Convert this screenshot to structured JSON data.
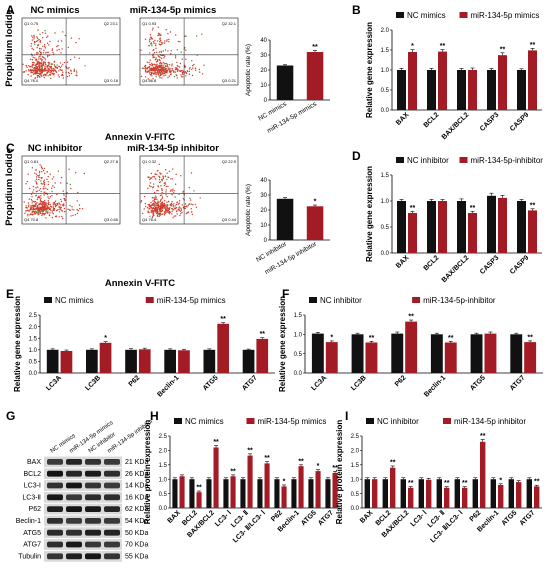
{
  "panel_letters": [
    "A",
    "B",
    "C",
    "D",
    "E",
    "F",
    "G",
    "H",
    "I"
  ],
  "colors": {
    "black": "#111111",
    "red": "#a31b24",
    "dots": "#d23a2a",
    "dots_green": "#3a9a3a"
  },
  "flow": [
    {
      "letter": "A",
      "plots": [
        {
          "label": "NC mimics",
          "q1": "Q1 0.75",
          "q2": "Q2 23.1",
          "q3": "Q3 0.18",
          "q4": "Q4 76.0"
        },
        {
          "label": "miR-134-5p mimics",
          "q1": "Q1 0.93",
          "q2": "Q2 32.1",
          "q3": "Q3 0.21",
          "q4": "Q4 66.8"
        }
      ],
      "ylabel": "Propidium Iodide",
      "xlabel": "Annexin V-FITC"
    },
    {
      "letter": "C",
      "plots": [
        {
          "label": "NC inhibitor",
          "q1": "Q1 0.81",
          "q2": "Q2 27.8",
          "q3": "Q3 0.65",
          "q4": "Q4 70.8"
        },
        {
          "label": "miR-134-5p inhibitor",
          "q1": "Q1 0.32",
          "q2": "Q2 22.9",
          "q3": "Q3 0.44",
          "q4": "Q4 76.4"
        }
      ],
      "ylabel": "Propidium Iodide",
      "xlabel": "Annexin V-FITC"
    }
  ],
  "western": {
    "letter": "G",
    "lanes": [
      "NC mimics",
      "miR-134-5p mimics",
      "NC inhibitor",
      "miR-134-5p inhibitor"
    ],
    "rows": [
      {
        "name": "BAX",
        "kda": "21 KDa"
      },
      {
        "name": "BCL2",
        "kda": "26 KDa"
      },
      {
        "name": "LC3-Ⅰ",
        "kda": "14 KDa"
      },
      {
        "name": "LC3-Ⅱ",
        "kda": "16 KDa"
      },
      {
        "name": "P62",
        "kda": "62 KDa"
      },
      {
        "name": "Beclin-1",
        "kda": "54 KDa"
      },
      {
        "name": "ATG5",
        "kda": "50 KDa"
      },
      {
        "name": "ATG7",
        "kda": "70 KDa"
      },
      {
        "name": "Tubulin",
        "kda": "55 KDa"
      }
    ]
  },
  "chart_data": [
    {
      "panel": "A-inset",
      "type": "bar",
      "ylabel": "Apoptotic rate (%)",
      "ylim": [
        0,
        40
      ],
      "yticks": [
        0,
        10,
        20,
        30,
        40
      ],
      "categories": [
        "NC mimics",
        "miR-134-5p mimics"
      ],
      "values": [
        23,
        32
      ],
      "errors": [
        0.5,
        1.0
      ],
      "colors": [
        "#111111",
        "#a31b24"
      ],
      "sig": [
        "",
        "**"
      ]
    },
    {
      "panel": "B",
      "type": "bar",
      "ylabel": "Relative gene expression",
      "ylim": [
        0,
        2.0
      ],
      "yticks": [
        0.0,
        0.5,
        1.0,
        1.5,
        2.0
      ],
      "legend": [
        "NC mimics",
        "miR-134-5p mimics"
      ],
      "categories": [
        "BAX",
        "BCL2",
        "BAX/BCL2",
        "CASP3",
        "CASP9"
      ],
      "series": [
        {
          "name": "NC mimics",
          "values": [
            1.0,
            1.0,
            1.0,
            1.0,
            1.0
          ],
          "errors": [
            0.04,
            0.04,
            0.04,
            0.04,
            0.03
          ]
        },
        {
          "name": "miR-134-5p mimics",
          "values": [
            1.45,
            1.46,
            1.0,
            1.37,
            1.49
          ],
          "errors": [
            0.06,
            0.05,
            0.05,
            0.06,
            0.05
          ]
        }
      ],
      "sig": [
        [
          "",
          "*"
        ],
        [
          "",
          "**"
        ],
        [
          "",
          ""
        ],
        [
          "",
          "**"
        ],
        [
          "",
          "**"
        ]
      ]
    },
    {
      "panel": "C-inset",
      "type": "bar",
      "ylabel": "Apoptotic rate (%)",
      "ylim": [
        0,
        40
      ],
      "yticks": [
        0,
        10,
        20,
        30,
        40
      ],
      "categories": [
        "NC inhibitor",
        "miR-134-5p inhibitor"
      ],
      "values": [
        27.5,
        22.5
      ],
      "errors": [
        0.8,
        0.8
      ],
      "colors": [
        "#111111",
        "#a31b24"
      ],
      "sig": [
        "",
        "*"
      ]
    },
    {
      "panel": "D",
      "type": "bar",
      "ylabel": "Relative gene expression",
      "ylim": [
        0,
        1.5
      ],
      "yticks": [
        0.0,
        0.5,
        1.0,
        1.5
      ],
      "legend": [
        "NC inhibitor",
        "miR-134-5p-inhibitor"
      ],
      "categories": [
        "BAX",
        "BCL2",
        "BAX/BCL2",
        "CASP3",
        "CASP9"
      ],
      "series": [
        {
          "name": "NC inhibitor",
          "values": [
            1.0,
            1.0,
            1.0,
            1.1,
            1.0
          ],
          "errors": [
            0.03,
            0.03,
            0.04,
            0.05,
            0.03
          ]
        },
        {
          "name": "miR-134-5p-inhibitor",
          "values": [
            0.77,
            1.0,
            0.77,
            1.06,
            0.82
          ],
          "errors": [
            0.03,
            0.03,
            0.03,
            0.05,
            0.03
          ]
        }
      ],
      "sig": [
        [
          "",
          "**"
        ],
        [
          "",
          ""
        ],
        [
          "",
          "**"
        ],
        [
          "",
          ""
        ],
        [
          "",
          "**"
        ]
      ]
    },
    {
      "panel": "E",
      "type": "bar",
      "ylabel": "Relative gene expression",
      "ylim": [
        0,
        2.5
      ],
      "yticks": [
        0.0,
        0.5,
        1.0,
        1.5,
        2.0,
        2.5
      ],
      "legend": [
        "NC mimics",
        "miR-134-5p mimics"
      ],
      "categories": [
        "LC3A",
        "LC3B",
        "P62",
        "Beclin-1",
        "ATG5",
        "ATG7"
      ],
      "series": [
        {
          "name": "NC mimics",
          "values": [
            1.0,
            1.0,
            1.0,
            1.0,
            1.0,
            1.0
          ],
          "errors": [
            0.04,
            0.04,
            0.05,
            0.04,
            0.04,
            0.03
          ]
        },
        {
          "name": "miR-134-5p mimics",
          "values": [
            0.95,
            1.3,
            1.02,
            0.98,
            2.12,
            1.47
          ],
          "errors": [
            0.04,
            0.05,
            0.05,
            0.04,
            0.05,
            0.05
          ]
        }
      ],
      "sig": [
        [
          "",
          ""
        ],
        [
          "",
          "*"
        ],
        [
          "",
          ""
        ],
        [
          "",
          ""
        ],
        [
          "",
          "**"
        ],
        [
          "",
          "**"
        ]
      ]
    },
    {
      "panel": "F",
      "type": "bar",
      "ylabel": "Relative gene expression",
      "ylim": [
        0,
        1.5
      ],
      "yticks": [
        0.0,
        0.5,
        1.0,
        1.5
      ],
      "legend": [
        "NC inhibitor",
        "miR-134-5p-inhibitor"
      ],
      "categories": [
        "LC3A",
        "LC3B",
        "P62",
        "Beclin-1",
        "ATG5",
        "ATG7"
      ],
      "series": [
        {
          "name": "NC inhibitor",
          "values": [
            1.02,
            1.0,
            1.02,
            1.0,
            1.0,
            1.0
          ],
          "errors": [
            0.03,
            0.03,
            0.04,
            0.03,
            0.03,
            0.03
          ]
        },
        {
          "name": "miR-134-5p-inhibitor",
          "values": [
            0.8,
            0.79,
            1.33,
            0.79,
            1.02,
            0.8
          ],
          "errors": [
            0.03,
            0.03,
            0.04,
            0.03,
            0.04,
            0.03
          ]
        }
      ],
      "sig": [
        [
          "",
          "*"
        ],
        [
          "",
          "**"
        ],
        [
          "",
          "**"
        ],
        [
          "",
          "**"
        ],
        [
          "",
          ""
        ],
        [
          "",
          "**"
        ]
      ]
    },
    {
      "panel": "H",
      "type": "bar",
      "ylabel": "Relative protein expression",
      "ylim": [
        0,
        2.5
      ],
      "yticks": [
        0.0,
        0.5,
        1.0,
        1.5,
        2.0,
        2.5
      ],
      "legend": [
        "NC mimics",
        "miR-134-5p mimics"
      ],
      "categories": [
        "BAX",
        "BCL2",
        "BAX/BCL2",
        "LC3- Ⅰ",
        "LC3- Ⅱ",
        "LC3- Ⅱ/LC3- Ⅰ",
        "P62",
        "Beclin-1",
        "ATG5",
        "ATG7"
      ],
      "series": [
        {
          "name": "NC mimics",
          "values": [
            1.0,
            1.0,
            1.0,
            1.0,
            1.0,
            1.0,
            1.0,
            1.0,
            1.0,
            1.0
          ],
          "errors": [
            0.05,
            0.05,
            0.05,
            0.05,
            0.05,
            0.05,
            0.05,
            0.05,
            0.05,
            0.05
          ]
        },
        {
          "name": "miR-134-5p mimics",
          "values": [
            1.1,
            0.55,
            2.1,
            1.1,
            1.82,
            1.55,
            0.75,
            1.45,
            1.28,
            1.22
          ],
          "errors": [
            0.05,
            0.04,
            0.07,
            0.05,
            0.06,
            0.06,
            0.05,
            0.05,
            0.05,
            0.05
          ]
        }
      ],
      "sig": [
        [
          "",
          ""
        ],
        [
          "",
          "**"
        ],
        [
          "",
          "**"
        ],
        [
          "",
          "**"
        ],
        [
          "",
          "**"
        ],
        [
          "",
          "**"
        ],
        [
          "",
          "*"
        ],
        [
          "",
          "**"
        ],
        [
          "",
          "*"
        ],
        [
          "",
          "**"
        ]
      ]
    },
    {
      "panel": "I",
      "type": "bar",
      "ylabel": "Relative protein expression",
      "ylim": [
        0,
        2.5
      ],
      "yticks": [
        0.0,
        0.5,
        1.0,
        1.5,
        2.0,
        2.5
      ],
      "legend": [
        "NC inhibitor",
        "miR-134-5p inhibitor"
      ],
      "categories": [
        "BAX",
        "BCL2",
        "BAX/BCL2",
        "LC3- Ⅰ",
        "LC3- Ⅱ",
        "LC3- Ⅱ/LC3- Ⅰ",
        "P62",
        "Beclin-1",
        "ATG5",
        "ATG7"
      ],
      "series": [
        {
          "name": "NC inhibitor",
          "values": [
            1.0,
            1.0,
            1.0,
            1.0,
            1.0,
            1.0,
            1.0,
            1.0,
            1.0,
            1.0
          ],
          "errors": [
            0.05,
            0.05,
            0.05,
            0.05,
            0.05,
            0.05,
            0.05,
            0.05,
            0.05,
            0.05
          ]
        },
        {
          "name": "miR-134-5p inhibitor",
          "values": [
            1.0,
            1.4,
            0.7,
            0.98,
            0.7,
            0.7,
            2.3,
            0.8,
            0.9,
            0.75
          ],
          "errors": [
            0.05,
            0.06,
            0.04,
            0.05,
            0.04,
            0.04,
            0.08,
            0.04,
            0.05,
            0.04
          ]
        }
      ],
      "sig": [
        [
          "",
          ""
        ],
        [
          "",
          "**"
        ],
        [
          "",
          "**"
        ],
        [
          "",
          ""
        ],
        [
          "",
          "**"
        ],
        [
          "",
          "**"
        ],
        [
          "",
          "**"
        ],
        [
          "",
          "*"
        ],
        [
          "",
          ""
        ],
        [
          "",
          "**"
        ]
      ]
    }
  ]
}
